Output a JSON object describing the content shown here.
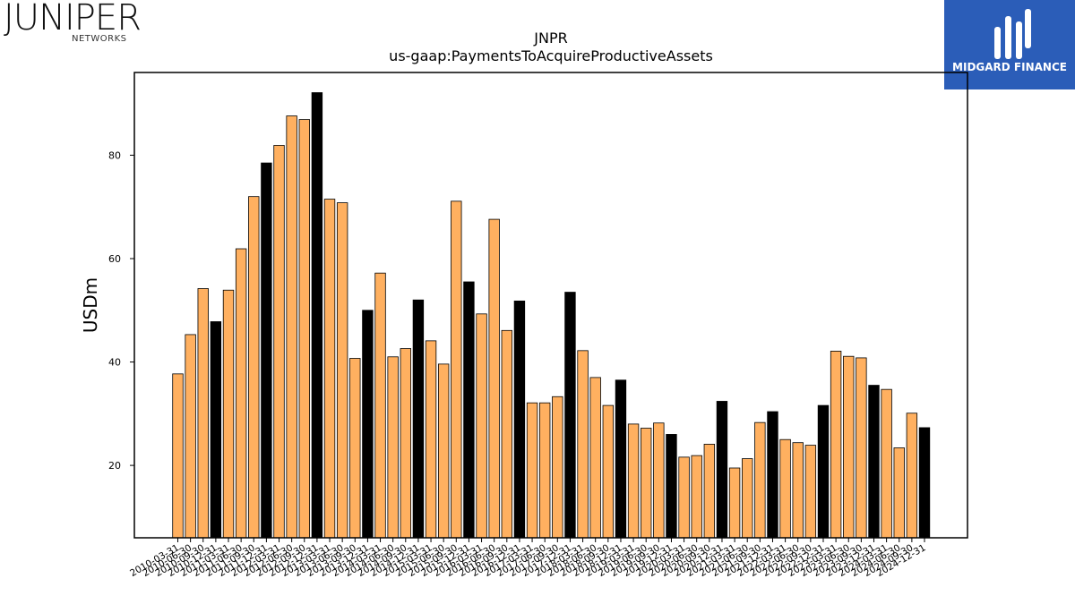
{
  "logos": {
    "left": {
      "text": "JUNIPER",
      "sub": "NETWORKS"
    },
    "right": {
      "text": "MIDGARD FINANCE",
      "bg": "#2b5db8"
    }
  },
  "colors": {
    "normal": "#ffb060",
    "highlight": "#000000",
    "edge": "#000000"
  },
  "chart_data": {
    "type": "bar",
    "title": "JNPR",
    "subtitle": "us-gaap:PaymentsToAcquireProductiveAssets",
    "xlabel": "",
    "ylabel": "USDm",
    "ylim": [
      6,
      96
    ],
    "yticks": [
      20,
      40,
      60,
      80
    ],
    "grid": false,
    "categories": [
      "2010-03-31",
      "2010-06-30",
      "2010-09-30",
      "2010-12-31",
      "2011-03-31",
      "2011-06-30",
      "2011-09-30",
      "2011-12-31",
      "2012-03-31",
      "2012-06-30",
      "2012-09-30",
      "2012-12-31",
      "2013-03-31",
      "2013-06-30",
      "2013-09-30",
      "2013-12-31",
      "2014-03-31",
      "2014-06-30",
      "2014-09-30",
      "2014-12-31",
      "2015-03-31",
      "2015-06-30",
      "2015-09-30",
      "2015-12-31",
      "2016-03-31",
      "2016-06-30",
      "2016-09-30",
      "2016-12-31",
      "2017-03-31",
      "2017-06-30",
      "2017-09-30",
      "2017-12-31",
      "2018-03-31",
      "2018-06-30",
      "2018-09-30",
      "2018-12-31",
      "2019-03-31",
      "2019-06-30",
      "2019-09-30",
      "2019-12-31",
      "2020-03-31",
      "2020-06-30",
      "2020-09-30",
      "2020-12-31",
      "2021-03-31",
      "2021-06-30",
      "2021-09-30",
      "2021-12-31",
      "2022-03-31",
      "2022-06-30",
      "2022-09-30",
      "2022-12-31",
      "2023-03-31",
      "2023-06-30",
      "2023-09-30",
      "2023-12-31",
      "2024-03-31",
      "2024-06-30",
      "2024-09-30",
      "2024-12-31"
    ],
    "values": [
      37.7,
      45.3,
      54.2,
      47.8,
      53.9,
      61.9,
      72.0,
      78.5,
      81.9,
      87.6,
      86.9,
      92.1,
      71.5,
      70.8,
      40.7,
      50.0,
      57.2,
      41.0,
      42.6,
      52.0,
      44.1,
      39.6,
      71.1,
      55.5,
      49.3,
      67.6,
      46.1,
      51.8,
      32.1,
      32.1,
      33.3,
      53.5,
      42.2,
      37.0,
      31.6,
      36.5,
      28.0,
      27.2,
      28.2,
      26.0,
      21.6,
      21.9,
      24.1,
      32.4,
      19.5,
      21.3,
      28.3,
      30.4,
      25.0,
      24.4,
      23.9,
      31.6,
      42.1,
      41.1,
      40.8,
      35.5,
      34.7,
      23.4,
      30.1,
      27.3
    ],
    "highlight": [
      false,
      false,
      false,
      true,
      false,
      false,
      false,
      true,
      false,
      false,
      false,
      true,
      false,
      false,
      false,
      true,
      false,
      false,
      false,
      true,
      false,
      false,
      false,
      true,
      false,
      false,
      false,
      true,
      false,
      false,
      false,
      true,
      false,
      false,
      false,
      true,
      false,
      false,
      false,
      true,
      false,
      false,
      false,
      true,
      false,
      false,
      false,
      true,
      false,
      false,
      false,
      true,
      false,
      false,
      false,
      true,
      false,
      false,
      false,
      true
    ]
  }
}
